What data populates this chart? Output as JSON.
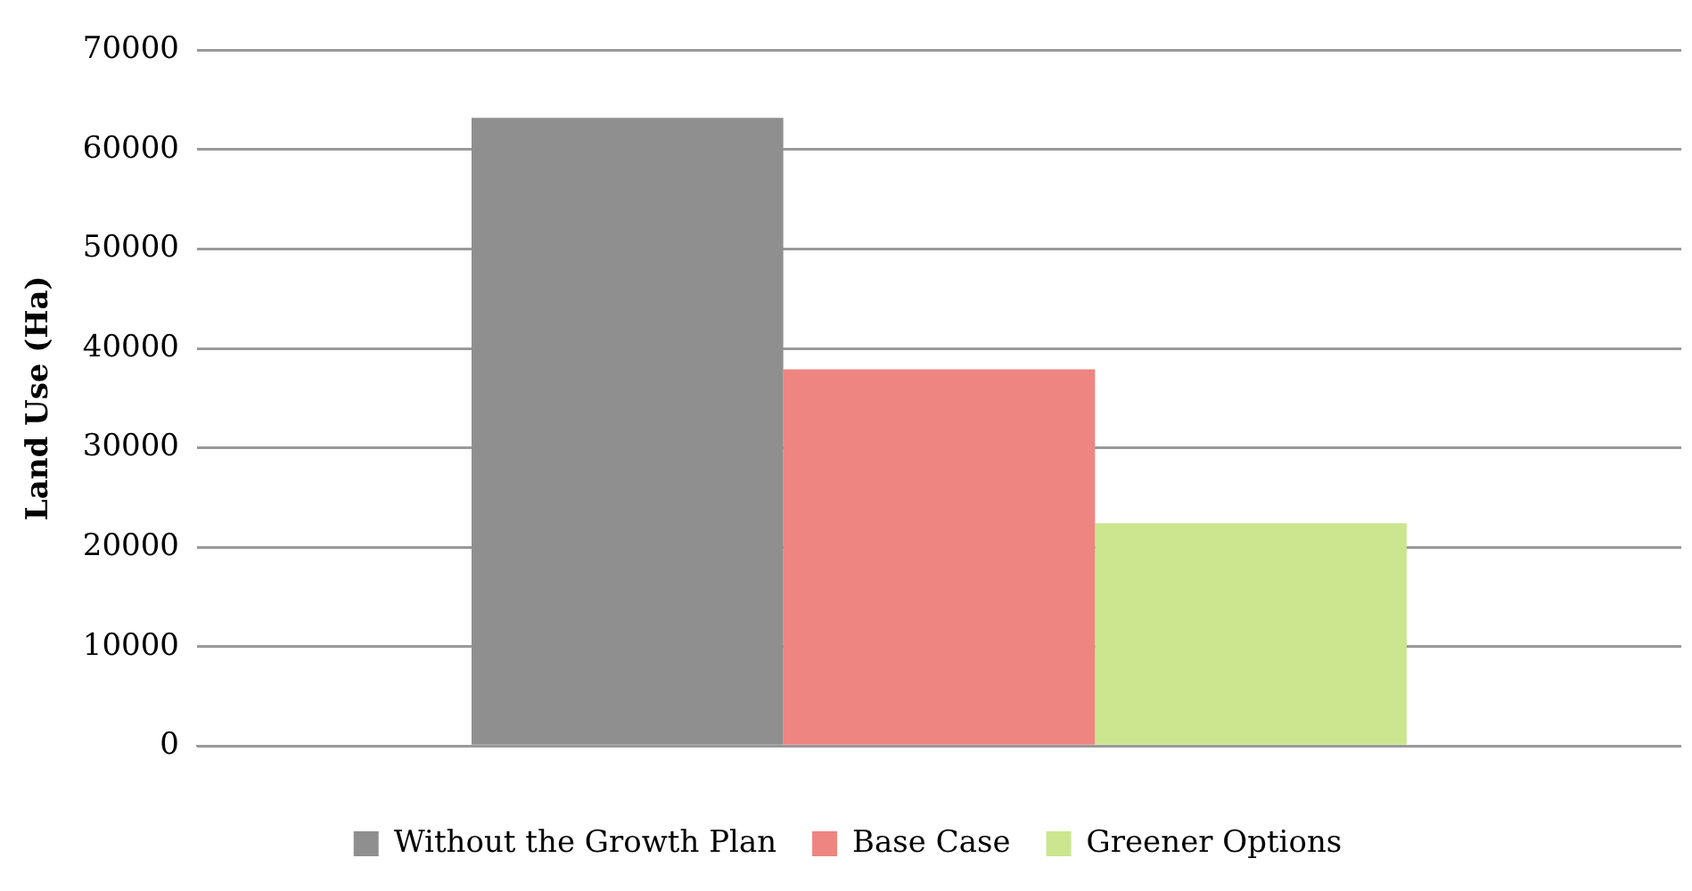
{
  "chart_data": {
    "type": "bar",
    "ylabel": "Land Use (Ha)",
    "categories": [
      null
    ],
    "series": [
      {
        "name": "Without the Growth Plan",
        "color": "#8f8f8f",
        "values": [
          63200
        ]
      },
      {
        "name": "Base Case",
        "color": "#ee8580",
        "values": [
          37900
        ]
      },
      {
        "name": "Greener Options",
        "color": "#cbe68f",
        "values": [
          22400
        ]
      }
    ],
    "ylim": [
      0,
      70000
    ],
    "yticks": [
      0,
      10000,
      20000,
      30000,
      40000,
      50000,
      60000,
      70000
    ],
    "grid": "y",
    "legend": "bottom"
  }
}
